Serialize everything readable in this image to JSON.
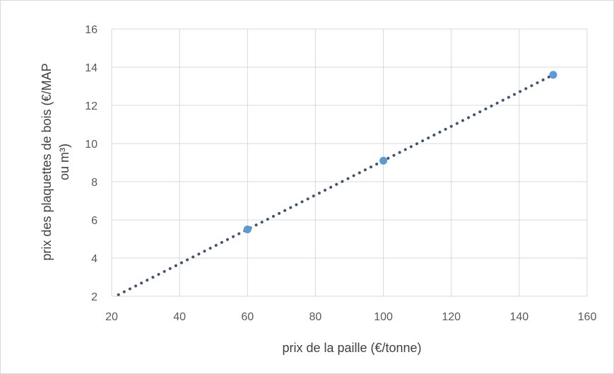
{
  "chart_data": {
    "type": "scatter",
    "xlabel": "prix de la paille (€/tonne)",
    "ylabel_lines": [
      "prix des plaquettes de bois (€/MAP",
      "ou m³)"
    ],
    "xlim": [
      20,
      160
    ],
    "ylim": [
      2,
      16
    ],
    "x_ticks": [
      20,
      40,
      60,
      80,
      100,
      120,
      140,
      160
    ],
    "y_ticks": [
      2,
      4,
      6,
      8,
      10,
      12,
      14,
      16
    ],
    "grid": true,
    "legend": "none",
    "series": [
      {
        "type": "scatter",
        "color": "#5b9bd5",
        "points": [
          {
            "x": 60,
            "y": 5.5
          },
          {
            "x": 100,
            "y": 9.1
          },
          {
            "x": 150,
            "y": 13.6
          }
        ]
      }
    ],
    "trendline": {
      "type": "linear",
      "style": "dotted",
      "color": "#44546a",
      "x_start": 22,
      "x_end": 150
    }
  }
}
